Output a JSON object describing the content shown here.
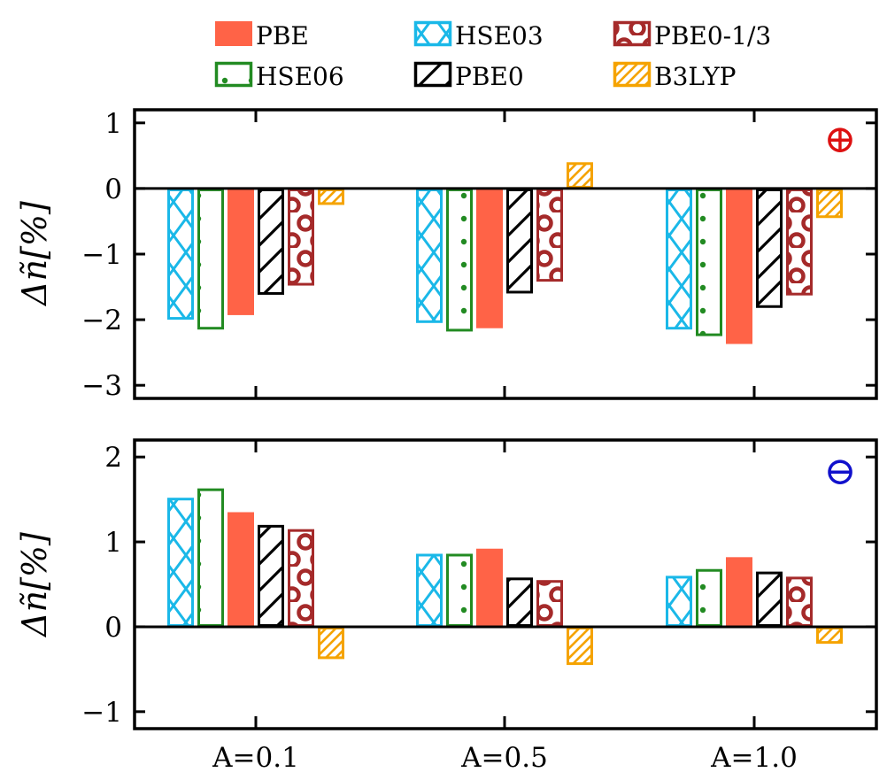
{
  "chart_data": {
    "type": "bar",
    "categories": [
      "A=0.1",
      "A=0.5",
      "A=1.0"
    ],
    "legend": [
      {
        "name": "PBE",
        "color": "#ff6347",
        "pattern": "solid"
      },
      {
        "name": "HSE03",
        "color": "#1ab8e8",
        "pattern": "crosshatch"
      },
      {
        "name": "PBE0-1/3",
        "color": "#a52a2a",
        "pattern": "circles"
      },
      {
        "name": "HSE06",
        "color": "#228b22",
        "pattern": "dots"
      },
      {
        "name": "PBE0",
        "color": "#000000",
        "pattern": "hatch"
      },
      {
        "name": "B3LYP",
        "color": "#f5a300",
        "pattern": "hatch"
      }
    ],
    "bar_order": [
      "HSE03",
      "HSE06",
      "PBE",
      "PBE0",
      "PBE0-1/3",
      "B3LYP"
    ],
    "panels": [
      {
        "id": "top",
        "sign_label": "⊕",
        "sign_color": "#dd1111",
        "ylabel": "Δñ[%]",
        "ylim": [
          -3.2,
          1.2
        ],
        "yticks": [
          -3,
          -2,
          -1,
          0,
          1
        ],
        "yticklabels": [
          "−3",
          "−2",
          "−1",
          "0",
          "1"
        ],
        "series": [
          {
            "name": "HSE03",
            "values": [
              -2.0,
              -2.05,
              -2.15
            ]
          },
          {
            "name": "HSE06",
            "values": [
              -2.15,
              -2.18,
              -2.25
            ]
          },
          {
            "name": "PBE",
            "values": [
              -1.93,
              -2.13,
              -2.37
            ]
          },
          {
            "name": "PBE0",
            "values": [
              -1.62,
              -1.6,
              -1.82
            ]
          },
          {
            "name": "PBE0-1/3",
            "values": [
              -1.48,
              -1.42,
              -1.63
            ]
          },
          {
            "name": "B3LYP",
            "values": [
              -0.25,
              0.4,
              -0.45
            ]
          }
        ]
      },
      {
        "id": "bottom",
        "sign_label": "⊖",
        "sign_color": "#1111cc",
        "ylabel": "Δñ[%]",
        "ylim": [
          -1.2,
          2.2
        ],
        "yticks": [
          -1,
          0,
          1,
          2
        ],
        "yticklabels": [
          "−1",
          "0",
          "1",
          "2"
        ],
        "series": [
          {
            "name": "HSE03",
            "values": [
              1.52,
              0.86,
              0.6
            ]
          },
          {
            "name": "HSE06",
            "values": [
              1.63,
              0.86,
              0.68
            ]
          },
          {
            "name": "PBE",
            "values": [
              1.35,
              0.92,
              0.82
            ]
          },
          {
            "name": "PBE0",
            "values": [
              1.2,
              0.58,
              0.65
            ]
          },
          {
            "name": "PBE0-1/3",
            "values": [
              1.15,
              0.55,
              0.59
            ]
          },
          {
            "name": "B3LYP",
            "values": [
              -0.38,
              -0.45,
              -0.2
            ]
          }
        ]
      }
    ]
  }
}
